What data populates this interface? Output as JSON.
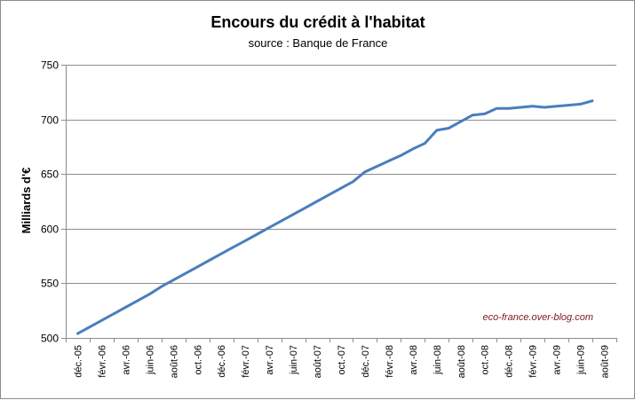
{
  "chart_data": {
    "type": "line",
    "title": "Encours du crédit à l'habitat",
    "subtitle": "source : Banque de France",
    "ylabel": "Milliards d'€",
    "xlabel": "",
    "ylim": [
      500,
      750
    ],
    "yticks": [
      500,
      550,
      600,
      650,
      700,
      750
    ],
    "ytick_labels": [
      "500",
      "550",
      "600",
      "650",
      "700",
      "750"
    ],
    "grid": "horizontal",
    "x_tick_labels": [
      "déc.-05",
      "févr.-06",
      "avr.-06",
      "juin-06",
      "août-06",
      "oct.-06",
      "déc.-06",
      "févr.-07",
      "avr.-07",
      "juin-07",
      "août-07",
      "oct.-07",
      "déc.-07",
      "févr.-08",
      "avr.-08",
      "juin-08",
      "août-08",
      "oct.-08",
      "déc.-08",
      "févr.-09",
      "avr.-09",
      "juin-09",
      "août-09"
    ],
    "annotation": "eco-france.over-blog.com",
    "series": [
      {
        "color": "#4a7ebb",
        "x": [
          "déc.-05",
          "janv.-06",
          "févr.-06",
          "mars-06",
          "avr.-06",
          "mai-06",
          "juin-06",
          "juil.-06",
          "août-06",
          "sept.-06",
          "oct.-06",
          "nov.-06",
          "déc.-06",
          "janv.-07",
          "févr.-07",
          "mars-07",
          "avr.-07",
          "mai-07",
          "juin-07",
          "juil.-07",
          "août-07",
          "sept.-07",
          "oct.-07",
          "nov.-07",
          "déc.-07",
          "janv.-08",
          "févr.-08",
          "mars-08",
          "avr.-08",
          "mai-08",
          "juin-08",
          "juil.-08",
          "août-08",
          "sept.-08",
          "oct.-08",
          "nov.-08",
          "déc.-08",
          "janv.-09",
          "févr.-09",
          "mars-09",
          "avr.-09",
          "mai-09",
          "juin-09",
          "juil.-09"
        ],
        "values": [
          504,
          510,
          516,
          522,
          528,
          534,
          540,
          547,
          553,
          559,
          565,
          571,
          577,
          583,
          589,
          595,
          601,
          607,
          613,
          619,
          625,
          631,
          637,
          643,
          652,
          657,
          662,
          667,
          673,
          678,
          690,
          692,
          698,
          704,
          705,
          710,
          710,
          711,
          712,
          711,
          712,
          713,
          714,
          717
        ]
      }
    ]
  }
}
